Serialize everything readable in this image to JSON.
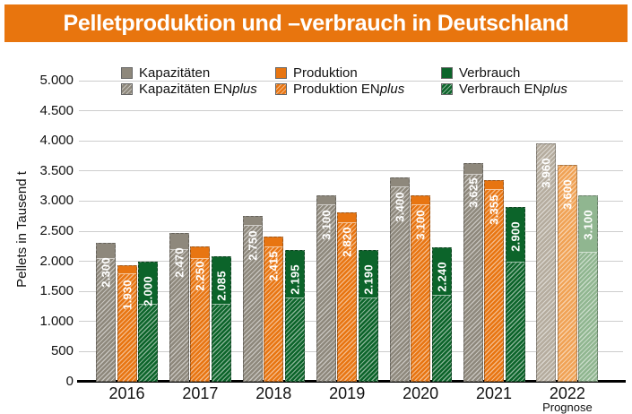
{
  "header": {
    "title": "Pelletproduktion und –verbrauch in Deutschland",
    "bg_color": "#e8750e",
    "text_color": "#ffffff"
  },
  "y_axis": {
    "title": "Pellets in Tausend t",
    "tick_labels": [
      "0",
      "500",
      "1.000",
      "1.500",
      "2.000",
      "2.500",
      "3.000",
      "3.500",
      "4.000",
      "4.500",
      "5.000"
    ]
  },
  "x_axis": {
    "labels": [
      "2016",
      "2017",
      "2018",
      "2019",
      "2020",
      "2021",
      "2022"
    ],
    "note_under_last": "Prognose"
  },
  "legend": {
    "row1": [
      {
        "label": "Kapazitäten"
      },
      {
        "label": "Produktion"
      },
      {
        "label": "Verbrauch"
      }
    ],
    "row2": [
      {
        "prefix": "Kapazitäten EN",
        "italic": "plus"
      },
      {
        "prefix": "Produktion EN",
        "italic": "plus"
      },
      {
        "prefix": "Verbrauch EN",
        "italic": "plus"
      }
    ]
  },
  "colors": {
    "grid": "#cdcdcd",
    "axis": "#000000",
    "bar_value_text": "#ffffff"
  },
  "chart_data": {
    "type": "bar",
    "title": "Pelletproduktion und –verbrauch in Deutschland",
    "ylabel": "Pellets in Tausend t",
    "ylim": [
      0,
      5000
    ],
    "ytick_step": 500,
    "grid": "horizontal",
    "legend_position": "top",
    "categories": [
      "2016",
      "2017",
      "2018",
      "2019",
      "2020",
      "2021",
      "2022"
    ],
    "forecast_category": "2022",
    "forecast_note": "Prognose",
    "series": [
      {
        "name": "Kapazitäten",
        "slug": "kapazitaeten",
        "enplus_name": "Kapazitäten ENplus",
        "color": "#8e887c",
        "forecast_color": "#b5ac9e",
        "values": [
          2300,
          2470,
          2750,
          3100,
          3400,
          3625,
          3960
        ],
        "value_labels": [
          "2.300",
          "2.470",
          "2.750",
          "3.100",
          "3.400",
          "3.625",
          "3.960"
        ],
        "enplus_hatched_up_to_est": [
          2050,
          2200,
          2600,
          2950,
          3250,
          3450,
          3960
        ]
      },
      {
        "name": "Produktion",
        "slug": "produktion",
        "enplus_name": "Produktion ENplus",
        "color": "#e87511",
        "forecast_color": "#f0a255",
        "values": [
          1930,
          2250,
          2415,
          2820,
          3100,
          3355,
          3600
        ],
        "value_labels": [
          "1.930",
          "2.250",
          "2.415",
          "2.820",
          "3.100",
          "3.355",
          "3.600"
        ],
        "enplus_hatched_up_to_est": [
          1800,
          2050,
          2250,
          2650,
          2950,
          3200,
          3600
        ]
      },
      {
        "name": "Verbrauch",
        "slug": "verbrauch",
        "enplus_name": "Verbrauch ENplus",
        "color": "#0c642a",
        "forecast_color": "#90b690",
        "values": [
          2000,
          2085,
          2195,
          2190,
          2240,
          2900,
          3100
        ],
        "value_labels": [
          "2.000",
          "2.085",
          "2.195",
          "2.190",
          "2.240",
          "2.900",
          "3.100"
        ],
        "enplus_hatched_up_to_est": [
          1300,
          1300,
          1400,
          1400,
          1450,
          2000,
          2150
        ]
      }
    ]
  }
}
